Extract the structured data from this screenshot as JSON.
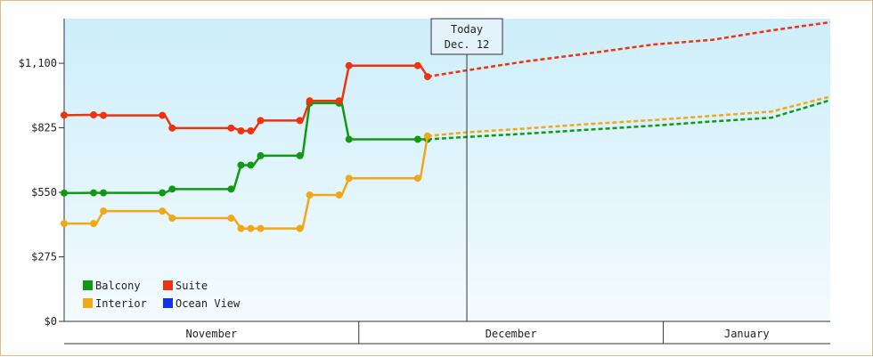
{
  "chart_data": {
    "type": "line",
    "y_axis": {
      "ticks": [
        0,
        275,
        550,
        825,
        1100
      ],
      "tick_labels": [
        "$0",
        "$275",
        "$550",
        "$825",
        "$1,100"
      ],
      "ylim": [
        0,
        1290
      ]
    },
    "x_axis": {
      "range": [
        "2025-11-01",
        "2026-01-18"
      ],
      "months": [
        {
          "label": "November",
          "start": "2025-11-01",
          "end": "2025-11-30"
        },
        {
          "label": "December",
          "start": "2025-12-01",
          "end": "2025-12-31"
        },
        {
          "label": "January",
          "start": "2026-01-01",
          "end": "2026-01-18"
        }
      ]
    },
    "today_marker": {
      "date": "2025-12-12",
      "line1": "Today",
      "line2": "Dec. 12"
    },
    "grid": false,
    "legend_placement": "bottom-left",
    "series": [
      {
        "name": "Balcony",
        "color": "#119911",
        "points": [
          [
            "2025-11-01",
            547
          ],
          [
            "2025-11-04",
            548
          ],
          [
            "2025-11-05",
            548
          ],
          [
            "2025-11-11",
            548
          ],
          [
            "2025-11-12",
            564
          ],
          [
            "2025-11-18",
            564
          ],
          [
            "2025-11-19",
            666
          ],
          [
            "2025-11-20",
            666
          ],
          [
            "2025-11-21",
            706
          ],
          [
            "2025-11-25",
            706
          ],
          [
            "2025-11-26",
            930
          ],
          [
            "2025-11-29",
            930
          ],
          [
            "2025-11-30",
            776
          ],
          [
            "2025-12-07",
            776
          ],
          [
            "2025-12-08",
            776
          ]
        ],
        "forecast": [
          [
            "2025-12-08",
            776
          ],
          [
            "2025-12-12",
            786
          ],
          [
            "2025-12-18",
            800
          ],
          [
            "2025-12-24",
            816
          ],
          [
            "2025-12-31",
            834
          ],
          [
            "2026-01-06",
            852
          ],
          [
            "2026-01-12",
            868
          ],
          [
            "2026-01-18",
            943
          ]
        ]
      },
      {
        "name": "Suite",
        "color": "#ee3311",
        "points": [
          [
            "2025-11-01",
            879
          ],
          [
            "2025-11-04",
            880
          ],
          [
            "2025-11-05",
            878
          ],
          [
            "2025-11-11",
            878
          ],
          [
            "2025-11-12",
            824
          ],
          [
            "2025-11-18",
            824
          ],
          [
            "2025-11-19",
            812
          ],
          [
            "2025-11-20",
            812
          ],
          [
            "2025-11-21",
            856
          ],
          [
            "2025-11-25",
            856
          ],
          [
            "2025-11-26",
            940
          ],
          [
            "2025-11-29",
            940
          ],
          [
            "2025-11-30",
            1090
          ],
          [
            "2025-12-07",
            1090
          ],
          [
            "2025-12-08",
            1043
          ]
        ],
        "forecast": [
          [
            "2025-12-08",
            1043
          ],
          [
            "2025-12-12",
            1070
          ],
          [
            "2025-12-18",
            1108
          ],
          [
            "2025-12-24",
            1140
          ],
          [
            "2025-12-31",
            1180
          ],
          [
            "2026-01-06",
            1200
          ],
          [
            "2026-01-12",
            1240
          ],
          [
            "2026-01-18",
            1275
          ]
        ]
      },
      {
        "name": "Interior",
        "color": "#f0a818",
        "points": [
          [
            "2025-11-01",
            417
          ],
          [
            "2025-11-04",
            417
          ],
          [
            "2025-11-05",
            470
          ],
          [
            "2025-11-11",
            470
          ],
          [
            "2025-11-12",
            440
          ],
          [
            "2025-11-18",
            440
          ],
          [
            "2025-11-19",
            396
          ],
          [
            "2025-11-20",
            396
          ],
          [
            "2025-11-21",
            396
          ],
          [
            "2025-11-25",
            396
          ],
          [
            "2025-11-26",
            539
          ],
          [
            "2025-11-29",
            539
          ],
          [
            "2025-11-30",
            610
          ],
          [
            "2025-12-07",
            610
          ],
          [
            "2025-12-08",
            790
          ]
        ],
        "forecast": [
          [
            "2025-12-08",
            790
          ],
          [
            "2025-12-12",
            806
          ],
          [
            "2025-12-18",
            822
          ],
          [
            "2025-12-24",
            840
          ],
          [
            "2025-12-31",
            858
          ],
          [
            "2026-01-06",
            876
          ],
          [
            "2026-01-12",
            894
          ],
          [
            "2026-01-18",
            958
          ]
        ]
      },
      {
        "name": "Ocean View",
        "color": "#1133ee",
        "points": [],
        "forecast": []
      }
    ]
  }
}
